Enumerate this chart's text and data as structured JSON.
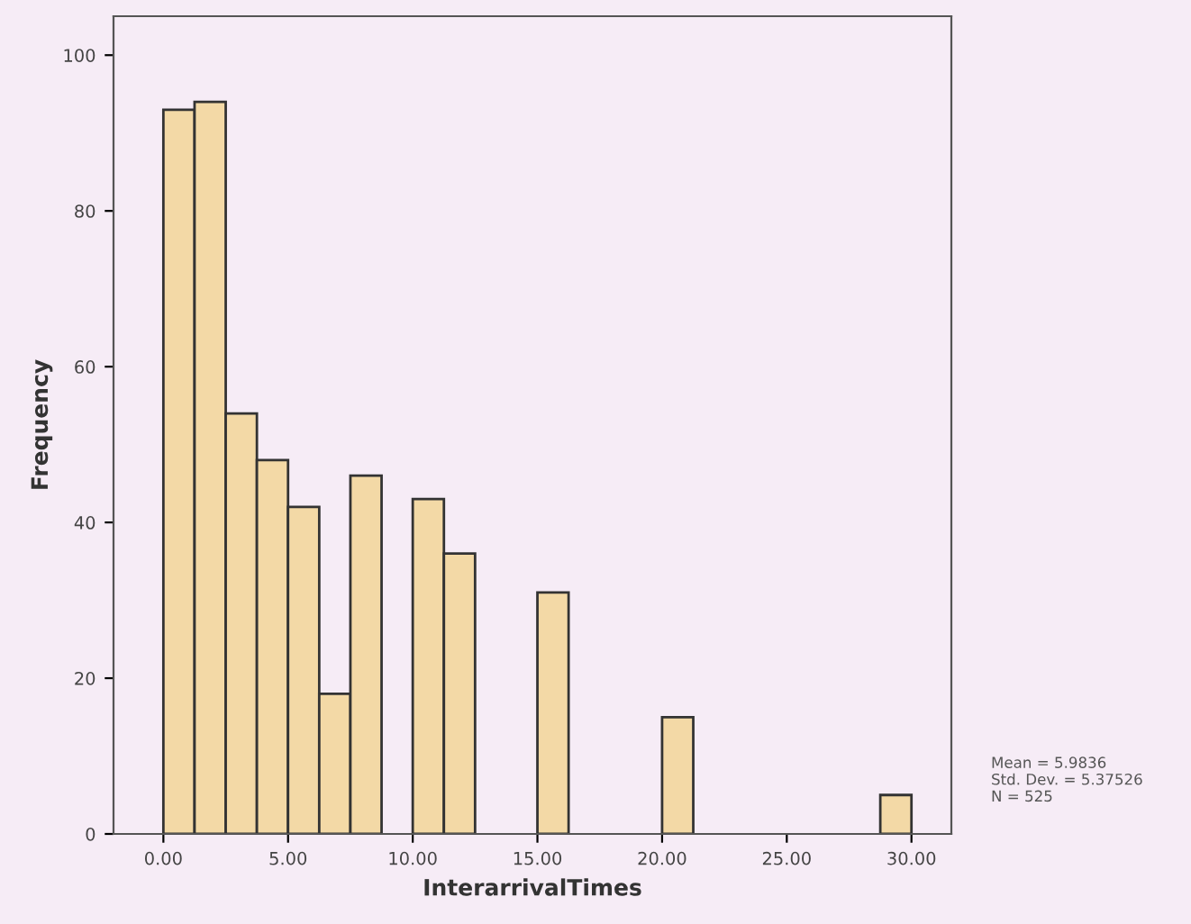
{
  "chart_data": {
    "type": "histogram",
    "xlabel": "InterarrivalTimes",
    "ylabel": "Frequency",
    "bins": [
      0,
      1.25,
      2.5,
      3.75,
      5,
      6.25,
      7.5,
      8.75,
      10,
      11.25,
      12.5,
      13.75,
      15,
      16.25,
      17.5,
      18.75,
      20,
      21.25,
      22.5,
      23.75,
      25,
      26.25,
      27.5,
      28.75,
      30
    ],
    "values": [
      93,
      94,
      54,
      48,
      42,
      18,
      46,
      0,
      43,
      36,
      0,
      0,
      31,
      0,
      0,
      0,
      15,
      0,
      0,
      0,
      0,
      0,
      0,
      5
    ],
    "color": "#f3d9a6",
    "xlim": [
      -2,
      31.6
    ],
    "ylim": [
      0,
      105
    ],
    "xticks": [
      {
        "value": 0,
        "label": "0.00"
      },
      {
        "value": 5,
        "label": "5.00"
      },
      {
        "value": 10,
        "label": "10.00"
      },
      {
        "value": 15,
        "label": "15.00"
      },
      {
        "value": 20,
        "label": "20.00"
      },
      {
        "value": 25,
        "label": "25.00"
      },
      {
        "value": 30,
        "label": "30.00"
      }
    ],
    "yticks": [
      0,
      20,
      40,
      60,
      80,
      100
    ],
    "grid": false,
    "legend": false,
    "annotations": [
      "Mean = 5.9836\nStd. Dev. = 5.37526\nN = 525"
    ]
  }
}
